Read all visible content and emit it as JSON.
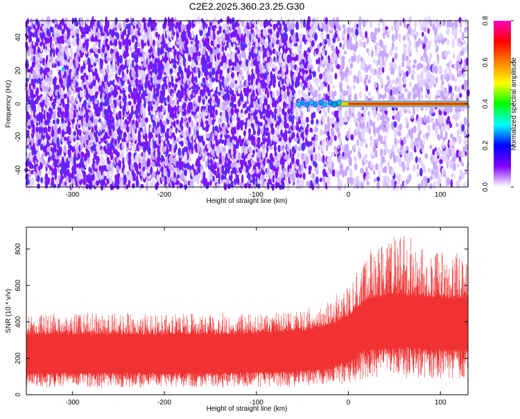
{
  "title": "C2E2.2025.360.23.25.G30",
  "chart_data": [
    {
      "type": "heatmap",
      "xlabel": "Height of straight line (km)",
      "ylabel": "Frequency (Hz)",
      "xlim": [
        -350,
        130
      ],
      "ylim": [
        -50,
        50
      ],
      "x_ticks": [
        -300,
        -200,
        -100,
        0,
        100
      ],
      "x_tick_labels": [
        "-300",
        "-200",
        "-100",
        "0",
        "100"
      ],
      "y_ticks": [
        -40,
        -20,
        0,
        20,
        40
      ],
      "y_tick_labels": [
        "-40",
        "-20",
        "0",
        "20",
        "40"
      ],
      "colorbar": {
        "label": "Normalized spectral amplitude",
        "range": [
          0.0,
          0.8
        ],
        "ticks": [
          0.0,
          0.2,
          0.4,
          0.6,
          0.8
        ],
        "tick_labels": [
          "0.0",
          "0.2",
          "0.4",
          "0.6",
          "0.8"
        ],
        "colors": [
          "#ffffff",
          "#8000ff",
          "#0000ff",
          "#00ffff",
          "#00ff00",
          "#ffff00",
          "#ff8000",
          "#ff0000",
          "#ff00c0"
        ]
      },
      "description_values": {
        "noise_region_x": [
          -350,
          -40
        ],
        "noise_amplitude": 0.1,
        "tone_frequency": 0,
        "tone_start_x": -55,
        "tone_amplitude": 0.72
      }
    },
    {
      "type": "line",
      "xlabel": "Height of straight line (km)",
      "ylabel": "SNR (10 * v/v)",
      "xlim": [
        -350,
        130
      ],
      "ylim": [
        0,
        920
      ],
      "x_ticks": [
        -300,
        -200,
        -100,
        0,
        100
      ],
      "x_tick_labels": [
        "-300",
        "-200",
        "-100",
        "0",
        "100"
      ],
      "y_ticks": [
        0,
        200,
        400,
        600,
        800
      ],
      "y_tick_labels": [
        "0",
        "200",
        "400",
        "600",
        "800"
      ],
      "series": [
        {
          "name": "SNR",
          "color": "#f03232",
          "envelope_x": [
            -350,
            -300,
            -250,
            -200,
            -150,
            -100,
            -50,
            -20,
            0,
            10,
            20,
            40,
            60,
            80,
            100,
            130
          ],
          "envelope_min": [
            40,
            40,
            40,
            40,
            40,
            40,
            45,
            55,
            60,
            70,
            80,
            100,
            90,
            90,
            90,
            90
          ],
          "envelope_typ_low": [
            120,
            120,
            120,
            120,
            120,
            125,
            130,
            150,
            190,
            230,
            250,
            260,
            260,
            255,
            250,
            250
          ],
          "envelope_typ_high": [
            330,
            330,
            330,
            330,
            330,
            335,
            350,
            380,
            430,
            480,
            520,
            540,
            540,
            540,
            530,
            525
          ],
          "envelope_max": [
            440,
            450,
            450,
            440,
            450,
            450,
            460,
            520,
            600,
            700,
            780,
            850,
            910,
            820,
            790,
            780
          ]
        }
      ]
    }
  ]
}
